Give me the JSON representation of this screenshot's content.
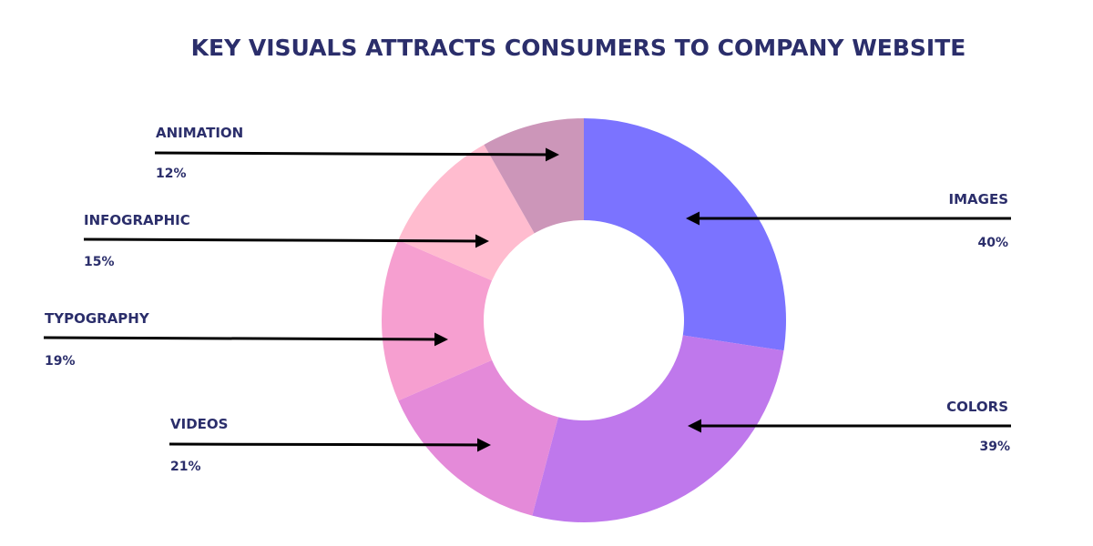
{
  "chart_data": {
    "type": "donut",
    "title": "KEY VISUALS ATTRACTS CONSUMERS TO COMPANY WEBSITE",
    "categories": [
      "IMAGES",
      "COLORS",
      "VIDEOS",
      "TYPOGRAPHY",
      "INFOGRAPHIC",
      "ANIMATION"
    ],
    "values": [
      40,
      39,
      21,
      19,
      15,
      12
    ],
    "value_labels": [
      "40%",
      "39%",
      "21%",
      "19%",
      "15%",
      "12%"
    ],
    "colors": [
      "#7b73ff",
      "#bf78ec",
      "#e48ad9",
      "#f69fd0",
      "#ffbccf",
      "#cc96b9"
    ],
    "legend": "none",
    "grid": false
  }
}
